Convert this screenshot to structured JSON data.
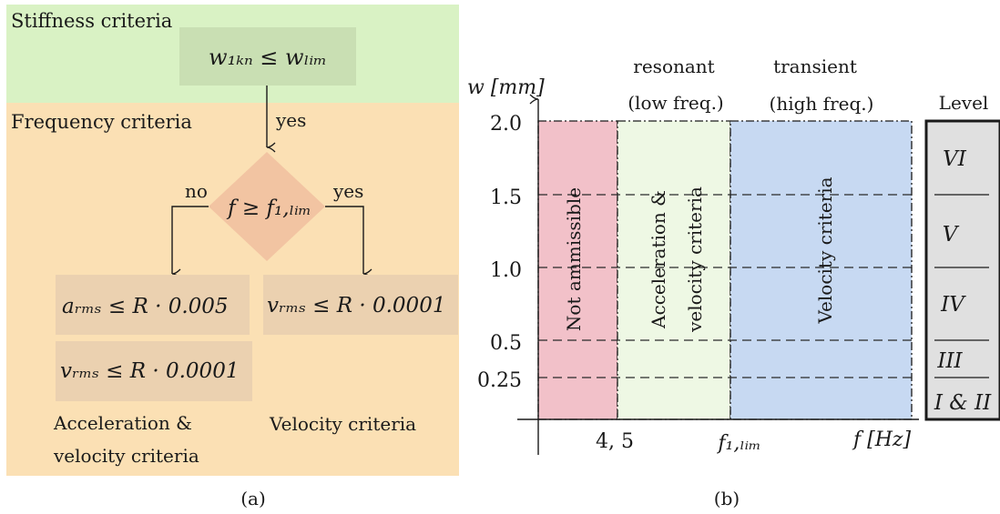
{
  "panel_a": {
    "stiffness_label": "Stiffness criteria",
    "frequency_label": "Frequency criteria",
    "stiffness_condition": "w₁ₖₙ ≤ wₗᵢₘ",
    "edge_yes_top": "yes",
    "decision": "f ≥ f₁,ₗᵢₘ",
    "edge_no": "no",
    "edge_yes_right": "yes",
    "box_accel": "aᵣₘₛ ≤ R · 0.005",
    "box_vel_left": "vᵣₘₛ ≤ R · 0.0001",
    "box_vel_right": "vᵣₘₛ ≤ R · 0.0001",
    "caption_left_line1": "Acceleration &",
    "caption_left_line2": "velocity criteria",
    "caption_right": "Velocity criteria",
    "sublabel": "(a)"
  },
  "panel_b": {
    "y_axis_label": "w [mm]",
    "x_axis_label": "f [Hz]",
    "y_ticks": [
      "2.0",
      "1.5",
      "1.0",
      "0.5",
      "0.25"
    ],
    "x_tick_1": "4, 5",
    "x_tick_2": "f₁,ₗᵢₘ",
    "header_resonant_1": "resonant",
    "header_resonant_2": "(low freq.)",
    "header_transient_1": "transient",
    "header_transient_2": "(high freq.)",
    "region_not_admissible": "Not ammissible",
    "region_accel_line1": "Acceleration &",
    "region_accel_line2": "velocity criteria",
    "region_velocity": "Velocity criteria",
    "level_title": "Level",
    "levels": [
      "VI",
      "V",
      "IV",
      "III",
      "I & II"
    ],
    "sublabel": "(b)"
  },
  "colors": {
    "stiffness_bg": "#d9f2c4",
    "frequency_bg": "#fbe0b4",
    "stiffness_box": "#c9dfb3",
    "decision": "#f2c4a2",
    "result_box": "#ebd1b0",
    "not_admissible": "#f2c1c9",
    "accel_region": "#eef8e4",
    "velocity_region": "#c7d9f2",
    "level_bg": "#e0e0e0"
  }
}
